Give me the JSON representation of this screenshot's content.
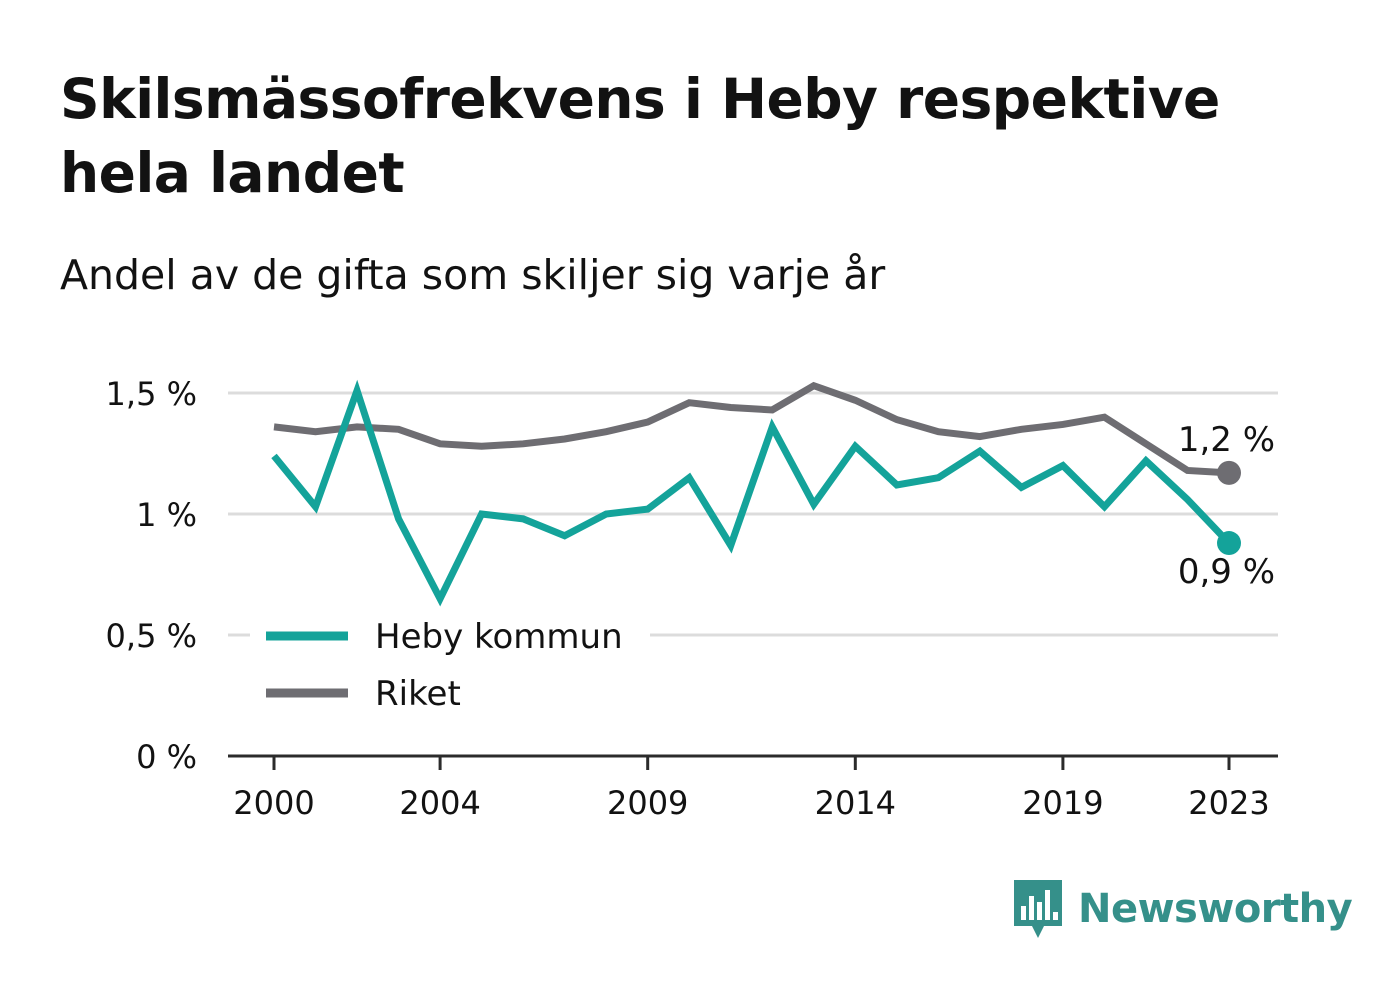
{
  "title": "Skilsmässofrekvens i Heby respektive hela landet",
  "subtitle": "Andel av de gifta som skiljer sig varje år",
  "brand": "Newsworthy",
  "chart_data": {
    "type": "line",
    "title": "Skilsmässofrekvens i Heby respektive hela landet",
    "subtitle": "Andel av de gifta som skiljer sig varje år",
    "x": [
      2000,
      2001,
      2002,
      2003,
      2004,
      2005,
      2006,
      2007,
      2008,
      2009,
      2010,
      2011,
      2012,
      2013,
      2014,
      2015,
      2016,
      2017,
      2018,
      2019,
      2020,
      2021,
      2022,
      2023
    ],
    "x_ticks": [
      "2000",
      "2004",
      "2009",
      "2014",
      "2019",
      "2023"
    ],
    "y_ticks": [
      "0 %",
      "0,5 %",
      "1 %",
      "1,5 %"
    ],
    "ylim": [
      0,
      1.5
    ],
    "grid": true,
    "legend_position": "bottom-left",
    "series": [
      {
        "name": "Heby kommun",
        "color": "#14a39a",
        "end_label": "0,9 %",
        "values": [
          1.24,
          1.03,
          1.51,
          0.98,
          0.65,
          1.0,
          0.98,
          0.91,
          1.0,
          1.02,
          1.15,
          0.87,
          1.36,
          1.04,
          1.28,
          1.12,
          1.15,
          1.26,
          1.11,
          1.2,
          1.03,
          1.22,
          1.06,
          0.88
        ]
      },
      {
        "name": "Riket",
        "color": "#6e6d72",
        "end_label": "1,2 %",
        "values": [
          1.36,
          1.34,
          1.36,
          1.35,
          1.29,
          1.28,
          1.29,
          1.31,
          1.34,
          1.38,
          1.46,
          1.44,
          1.43,
          1.53,
          1.47,
          1.39,
          1.34,
          1.32,
          1.35,
          1.37,
          1.4,
          1.29,
          1.18,
          1.17
        ]
      }
    ]
  }
}
